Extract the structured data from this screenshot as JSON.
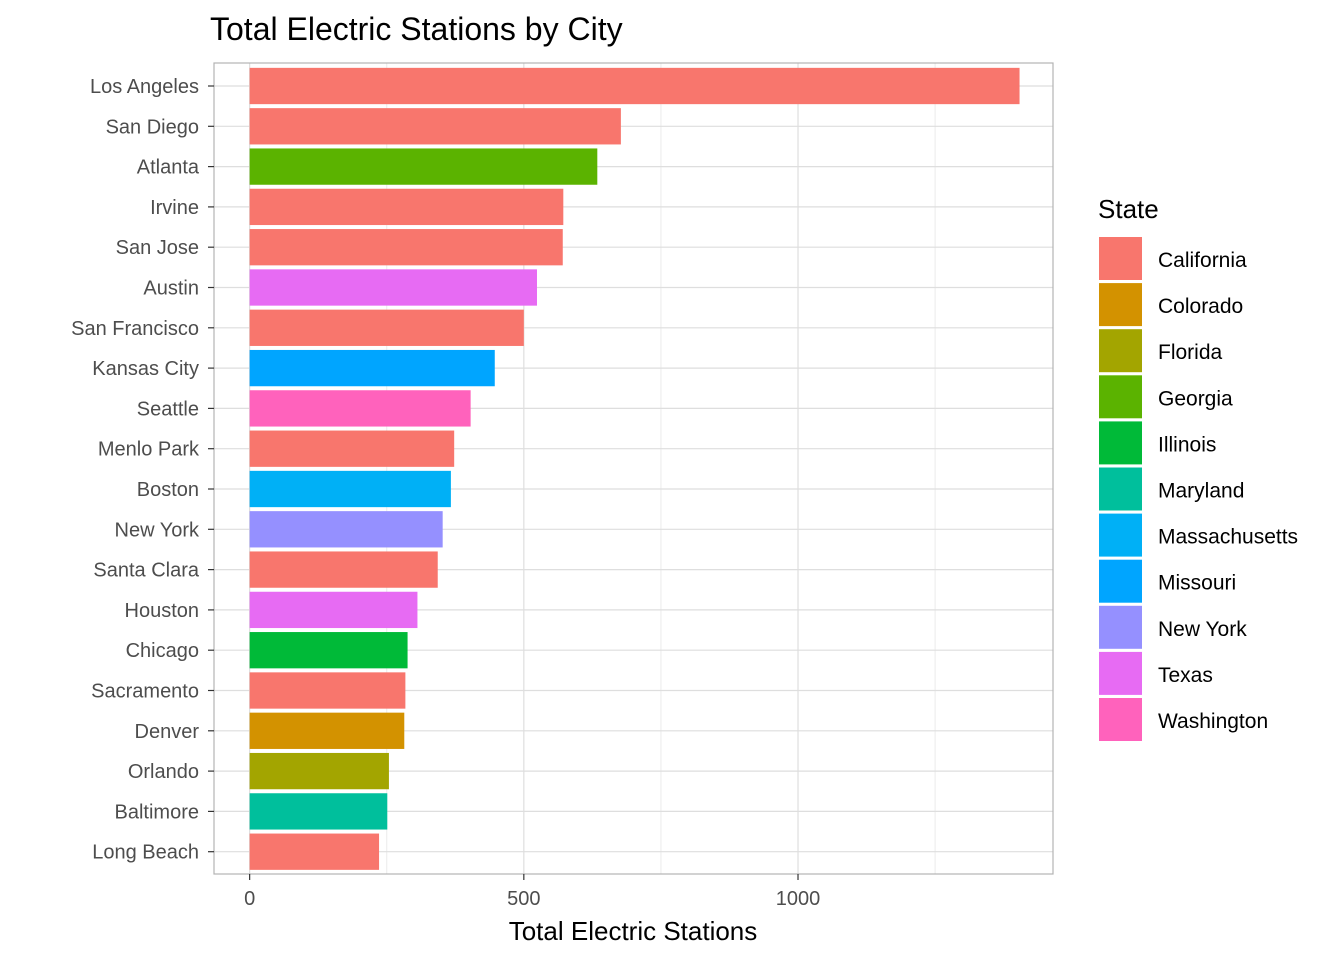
{
  "chart_data": {
    "type": "bar",
    "orientation": "horizontal",
    "title": "Total Electric Stations by City",
    "xlabel": "Total Electric Stations",
    "ylabel": "",
    "xlim": [
      -65,
      1465
    ],
    "xticks": [
      0,
      500,
      1000
    ],
    "xtick_labels": [
      "0",
      "500",
      "1000"
    ],
    "grid": true,
    "legend_placement": "right",
    "legend_title": "State",
    "legend": [
      {
        "state": "California",
        "color": "#F8766D"
      },
      {
        "state": "Colorado",
        "color": "#D39200"
      },
      {
        "state": "Florida",
        "color": "#A3A500"
      },
      {
        "state": "Georgia",
        "color": "#5BB300"
      },
      {
        "state": "Illinois",
        "color": "#00BA38"
      },
      {
        "state": "Maryland",
        "color": "#00BF9C"
      },
      {
        "state": "Massachusetts",
        "color": "#00B0F6"
      },
      {
        "state": "Missouri",
        "color": "#00A5FF"
      },
      {
        "state": "New York",
        "color": "#9590FF"
      },
      {
        "state": "Texas",
        "color": "#E76BF3"
      },
      {
        "state": "Washington",
        "color": "#FF62BC"
      }
    ],
    "categories": [
      "Los Angeles",
      "San Diego",
      "Atlanta",
      "Irvine",
      "San Jose",
      "Austin",
      "San Francisco",
      "Kansas City",
      "Seattle",
      "Menlo Park",
      "Boston",
      "New York",
      "Santa Clara",
      "Houston",
      "Chicago",
      "Sacramento",
      "Denver",
      "Orlando",
      "Baltimore",
      "Long Beach"
    ],
    "values": [
      1404,
      677,
      634,
      572,
      571,
      524,
      500,
      447,
      403,
      373,
      367,
      352,
      343,
      306,
      288,
      284,
      282,
      254,
      251,
      236
    ],
    "states": [
      "California",
      "California",
      "Georgia",
      "California",
      "California",
      "Texas",
      "California",
      "Missouri",
      "Washington",
      "California",
      "Massachusetts",
      "New York",
      "California",
      "Texas",
      "Illinois",
      "California",
      "Colorado",
      "Florida",
      "Maryland",
      "California"
    ]
  }
}
